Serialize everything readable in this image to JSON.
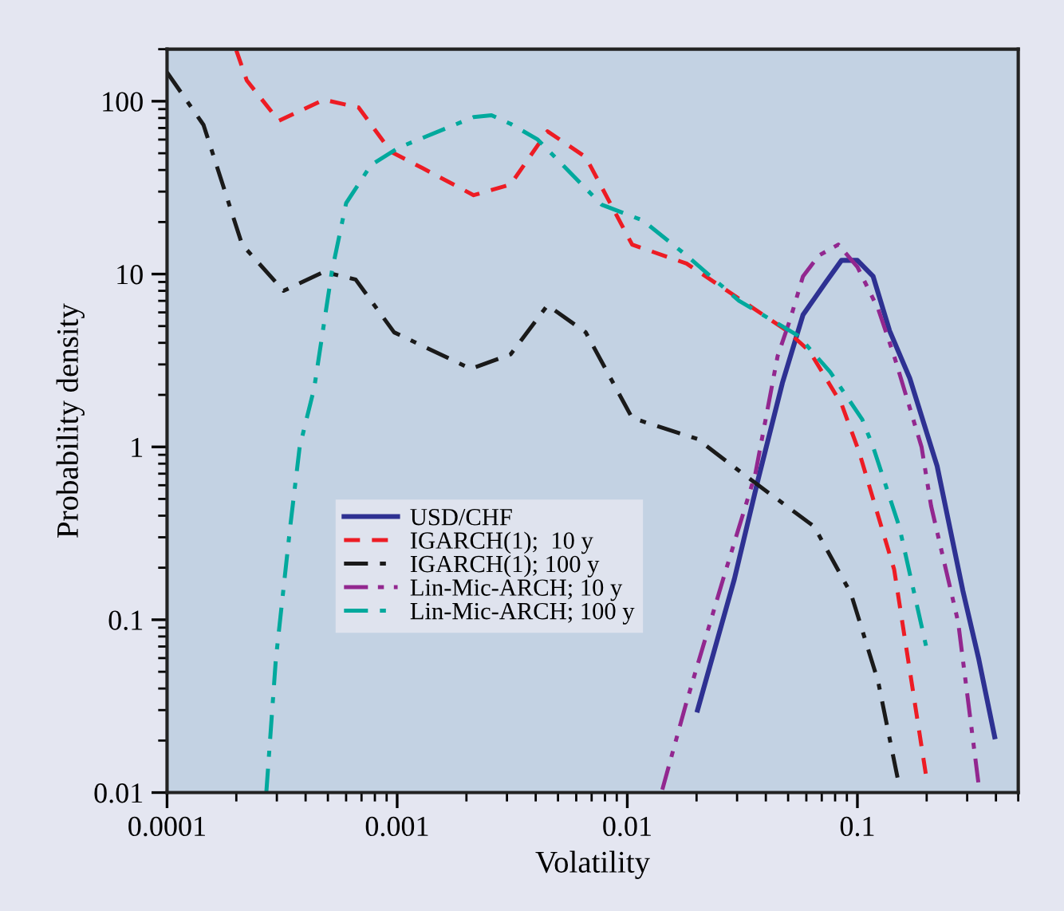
{
  "chart_data": {
    "type": "line",
    "xlabel": "Volatility",
    "ylabel": "Probability density",
    "log": "xy",
    "grid": false,
    "legend": "lower left",
    "xlim": [
      0.0001,
      0.5
    ],
    "ylim": [
      0.01,
      200
    ],
    "xticks": [
      0.0001,
      0.001,
      0.01,
      0.1
    ],
    "yticks": [
      0.01,
      0.1,
      1,
      10,
      100
    ],
    "series": [
      {
        "name": "USD/CHF",
        "color": "#2e3192",
        "line_style": "solid",
        "x": [
          0.0202,
          0.0292,
          0.0371,
          0.0472,
          0.058,
          0.0726,
          0.0853,
          0.1,
          0.117,
          0.138,
          0.169,
          0.222,
          0.287,
          0.337,
          0.395
        ],
        "values": [
          0.03,
          0.172,
          0.655,
          2.34,
          5.8,
          8.9,
          12.0,
          12.0,
          9.7,
          4.7,
          2.49,
          0.775,
          0.148,
          0.059,
          0.021
        ]
      },
      {
        "name": "IGARCH(1);  10 y",
        "color": "#ed1c24",
        "line_style": "dashed",
        "x": [
          0.0002,
          0.000222,
          0.000306,
          0.00048,
          0.00068,
          0.00094,
          0.00129,
          0.00215,
          0.00311,
          0.0045,
          0.0066,
          0.0105,
          0.0181,
          0.0494,
          0.062,
          0.0853,
          0.1016,
          0.1445,
          0.199
        ],
        "values": [
          197,
          132,
          77,
          102,
          92,
          51,
          41,
          28.6,
          33,
          67,
          47.5,
          14.8,
          11.5,
          4.7,
          3.57,
          1.77,
          0.94,
          0.195,
          0.0124
        ]
      },
      {
        "name": "IGARCH(1); 100 y",
        "color": "#1a1a1a",
        "line_style": "dashdot",
        "x": [
          0.0001,
          0.000144,
          0.000212,
          0.000321,
          0.00048,
          0.00066,
          0.00097,
          0.00209,
          0.00311,
          0.0045,
          0.0066,
          0.0105,
          0.0202,
          0.0327,
          0.0649,
          0.0937,
          0.123,
          0.152
        ],
        "values": [
          147,
          73,
          14.8,
          8.0,
          10.3,
          9.3,
          4.6,
          2.83,
          3.43,
          6.6,
          4.6,
          1.47,
          1.11,
          0.68,
          0.346,
          0.142,
          0.044,
          0.0109
        ]
      },
      {
        "name": "Lin-Mic-ARCH; 10 y",
        "color": "#92278f",
        "line_style": "dashdotdot",
        "x": [
          0.0142,
          0.0181,
          0.0261,
          0.036,
          0.045,
          0.0511,
          0.058,
          0.068,
          0.0826,
          0.1,
          0.123,
          0.1445,
          0.19,
          0.209,
          0.274,
          0.337
        ],
        "values": [
          0.0104,
          0.0335,
          0.172,
          0.697,
          3.35,
          5.5,
          9.7,
          12.8,
          14.8,
          11,
          6.3,
          3.35,
          1.0,
          0.456,
          0.097,
          0.0109
        ]
      },
      {
        "name": "Lin-Mic-ARCH; 100 y",
        "color": "#00a99d",
        "line_style": "dashdot",
        "x": [
          0.00027,
          0.000297,
          0.000343,
          0.000377,
          0.000436,
          0.00052,
          0.0006,
          0.00077,
          0.00102,
          0.00215,
          0.00257,
          0.00311,
          0.00408,
          0.00774,
          0.0117,
          0.0181,
          0.0306,
          0.0553,
          0.0762,
          0.105,
          0.117,
          0.152,
          0.199
        ],
        "values": [
          0.01,
          0.059,
          0.346,
          1.0,
          2.19,
          10.3,
          25.7,
          42.8,
          54,
          81,
          83,
          74,
          60,
          25.2,
          20.4,
          12.8,
          7.0,
          4.4,
          2.71,
          1.44,
          1.0,
          0.346,
          0.07
        ]
      }
    ]
  }
}
